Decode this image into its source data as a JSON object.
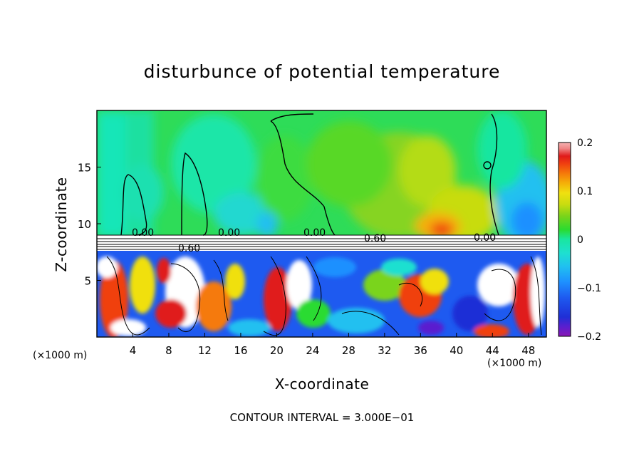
{
  "chart_data": {
    "type": "heatmap",
    "title": "disturbunce of potential temperature",
    "xlabel": "X-coordinate",
    "ylabel": "Z-coordinate",
    "x_unit": "(×1000 m)",
    "xlim": [
      0,
      50
    ],
    "ylim": [
      0,
      20
    ],
    "x_ticks": [
      4,
      8,
      12,
      16,
      20,
      24,
      28,
      32,
      36,
      40,
      44,
      48
    ],
    "y_ticks": [
      5,
      10,
      15
    ],
    "colorbar": {
      "range": [
        -0.2,
        0.2
      ],
      "ticks": [
        "0.2",
        "0.1",
        "0",
        "−0.1",
        "−0.2"
      ]
    },
    "contour_labels": [
      "0.00",
      "0.00",
      "0.00",
      "0.60",
      "0.60",
      "0.00"
    ],
    "contour_interval_text": "CONTOUR INTERVAL = 3.000E−01"
  },
  "colors": {
    "colormap": [
      "#8a17b4",
      "#5a1fcf",
      "#1f2fd6",
      "#1e5af0",
      "#1e90ff",
      "#20c0f0",
      "#1ee0d0",
      "#19e6a0",
      "#16e068",
      "#2adb30",
      "#7ad41a",
      "#c8dc10",
      "#f0e010",
      "#f5b008",
      "#f57a0a",
      "#f04010",
      "#e01a1a",
      "#f08888",
      "#f5b0b0"
    ]
  }
}
